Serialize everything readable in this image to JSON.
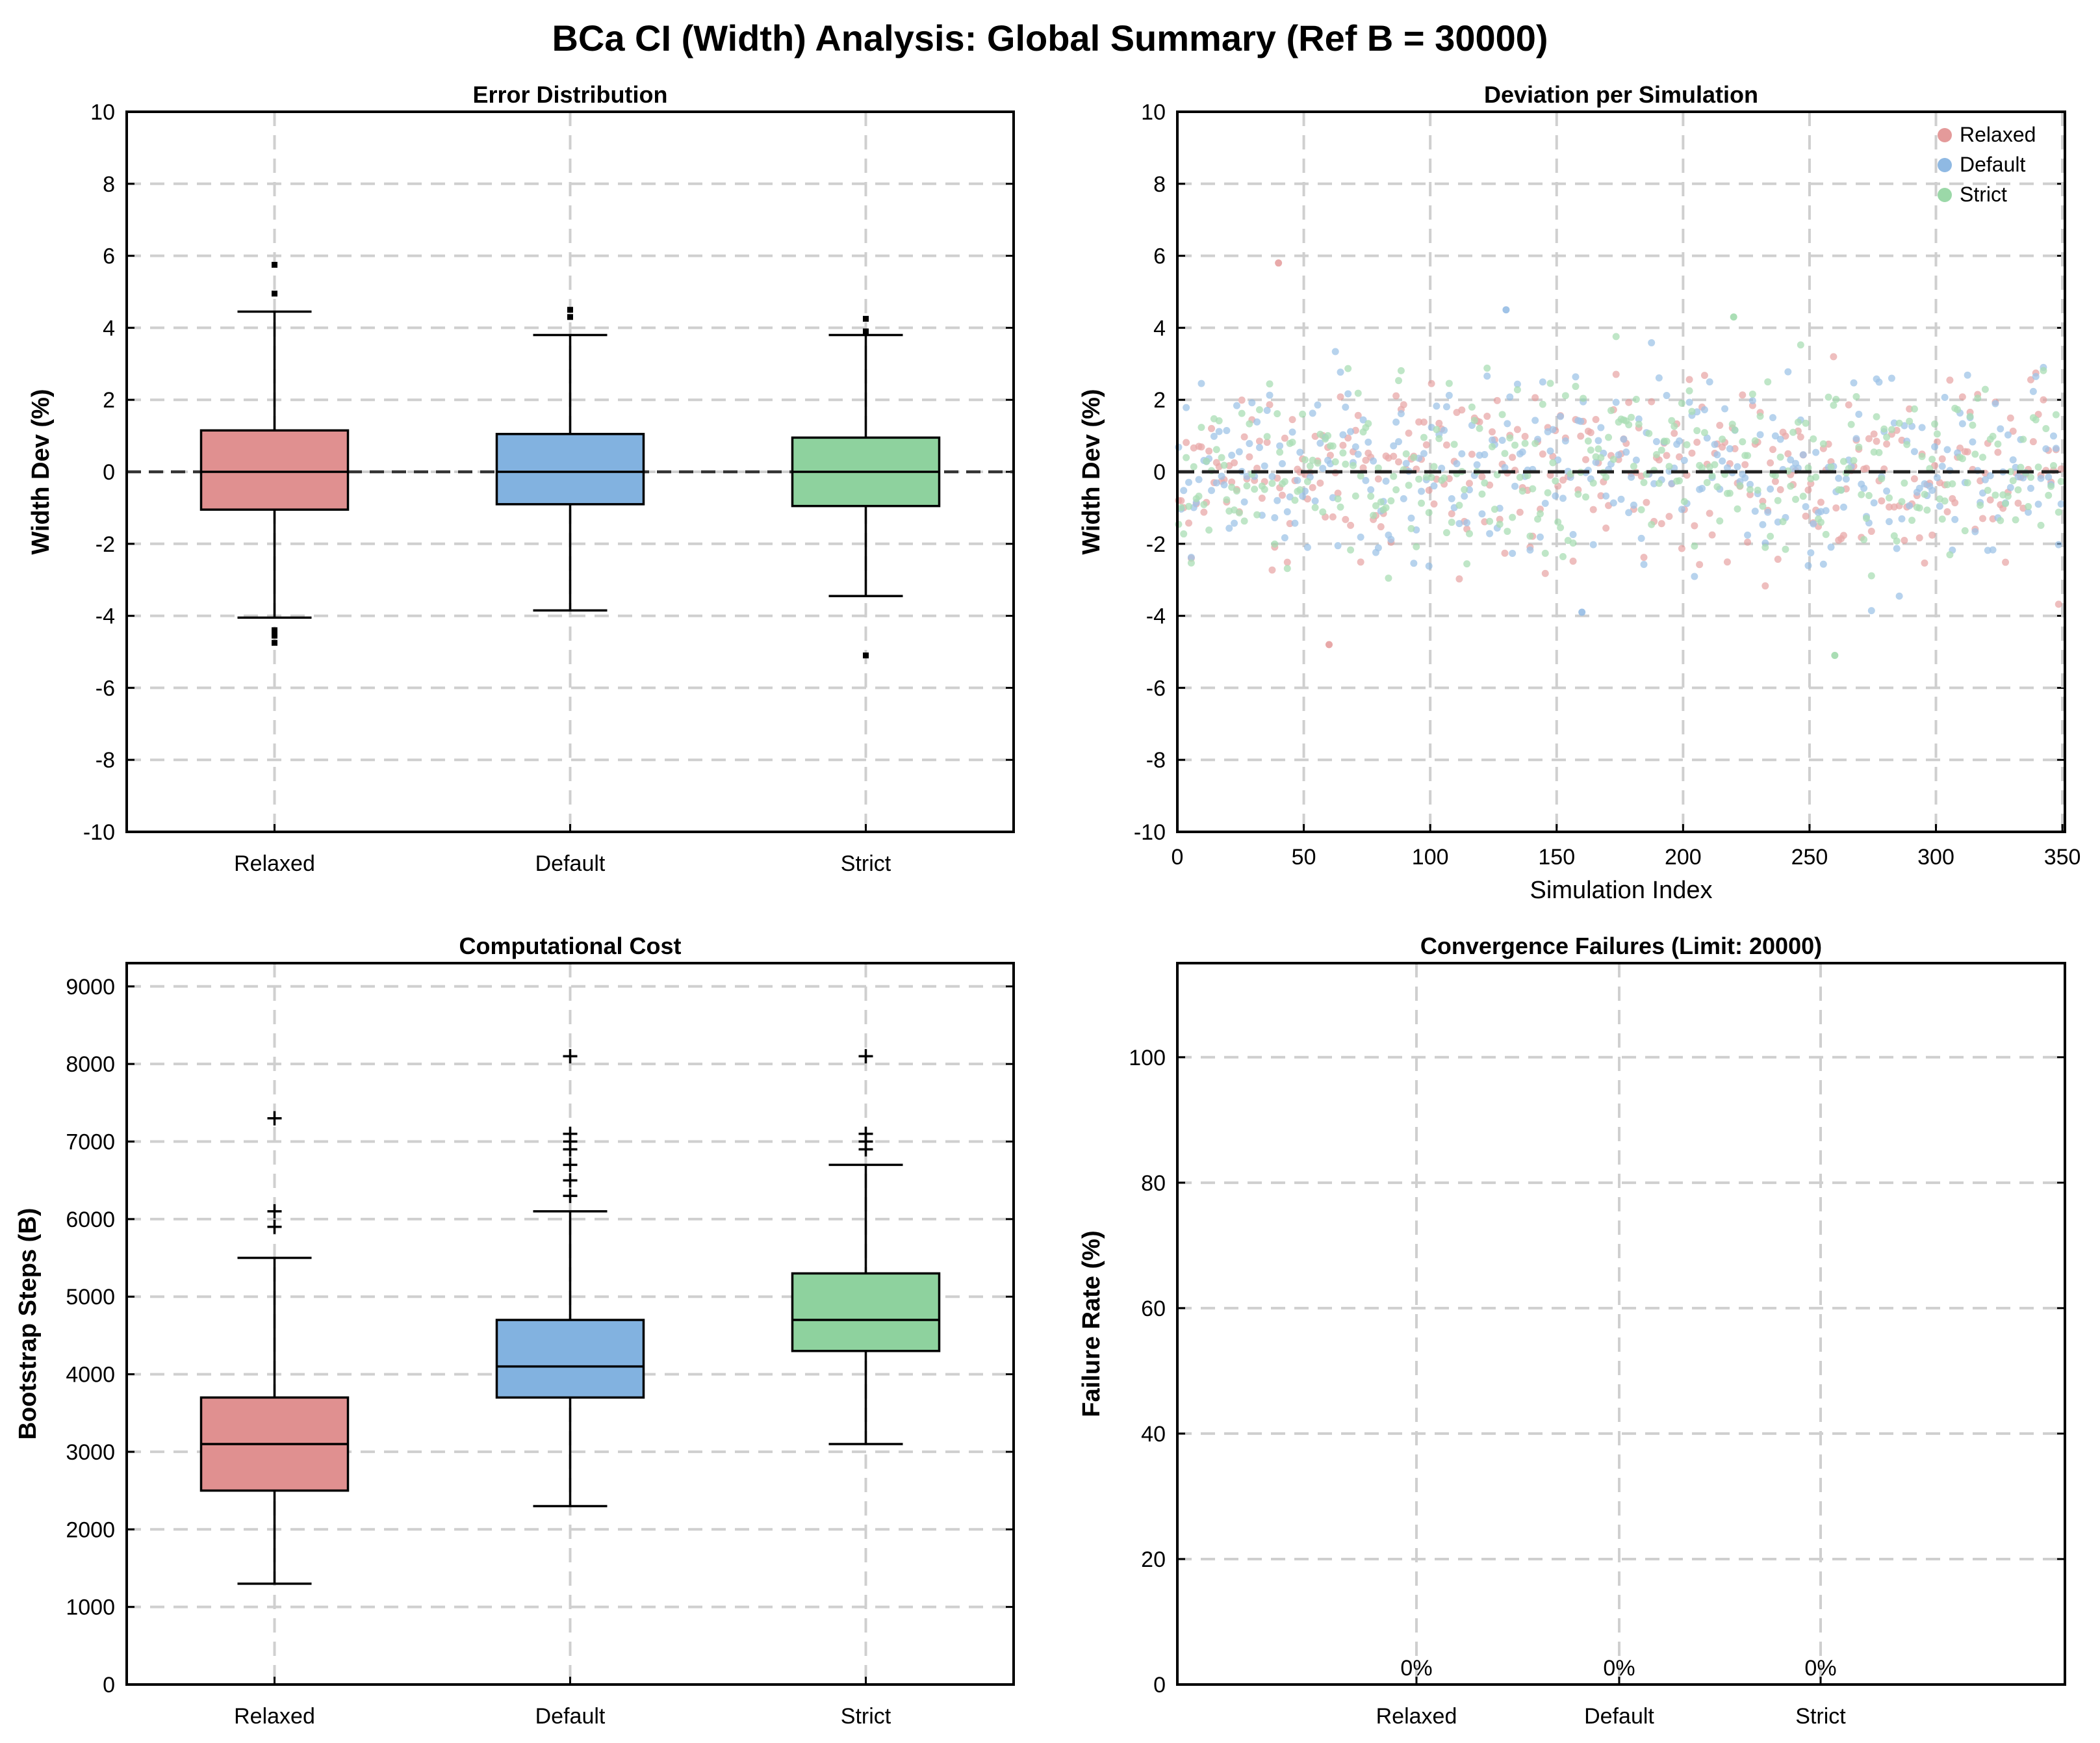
{
  "figure": {
    "title": "BCa CI (Width) Analysis: Global Summary (Ref B = 30000)"
  },
  "colors": {
    "Relaxed": "#e09090",
    "Default": "#82b2e0",
    "Strict": "#8ed29e",
    "scatter_Relaxed": "#e49a9a",
    "scatter_Default": "#8fb9e3",
    "scatter_Strict": "#9bd8a8"
  },
  "chart_data": [
    {
      "id": "error",
      "type": "box",
      "title": "Error Distribution",
      "xlabel": "",
      "ylabel": "Width Dev (%)",
      "categories": [
        "Relaxed",
        "Default",
        "Strict"
      ],
      "ylim": [
        -10,
        10
      ],
      "yticks": [
        -10,
        -8,
        -6,
        -4,
        -2,
        0,
        2,
        4,
        6,
        8,
        10
      ],
      "reference_line": 0,
      "boxes": [
        {
          "name": "Relaxed",
          "whislo": -4.05,
          "q1": -1.05,
          "med": 0.0,
          "q3": 1.15,
          "whishi": 4.45,
          "fliers": [
            -4.75,
            -4.55,
            -4.4,
            4.95,
            5.75
          ]
        },
        {
          "name": "Default",
          "whislo": -3.85,
          "q1": -0.9,
          "med": 0.0,
          "q3": 1.05,
          "whishi": 3.8,
          "fliers": [
            4.3,
            4.5
          ]
        },
        {
          "name": "Strict",
          "whislo": -3.45,
          "q1": -0.95,
          "med": 0.0,
          "q3": 0.95,
          "whishi": 3.8,
          "fliers": [
            -5.1,
            3.9,
            4.25
          ]
        }
      ]
    },
    {
      "id": "deviation",
      "type": "scatter",
      "title": "Deviation per Simulation",
      "xlabel": "Simulation Index",
      "ylabel": "Width Dev (%)",
      "xlim": [
        0,
        351
      ],
      "ylim": [
        -10,
        10
      ],
      "xticks": [
        0,
        50,
        100,
        150,
        200,
        250,
        300,
        350
      ],
      "yticks": [
        -10,
        -8,
        -6,
        -4,
        -2,
        0,
        2,
        4,
        6,
        8,
        10
      ],
      "reference_line": 0,
      "legend": {
        "position": "upper-right",
        "entries": [
          "Relaxed",
          "Default",
          "Strict"
        ]
      },
      "n_points_per_series": 350,
      "series": [
        {
          "name": "Relaxed",
          "y_min": -4.8,
          "y_max": 5.8
        },
        {
          "name": "Default",
          "y_min": -3.9,
          "y_max": 4.5
        },
        {
          "name": "Strict",
          "y_min": -5.1,
          "y_max": 4.3
        }
      ]
    },
    {
      "id": "cost",
      "type": "box",
      "title": "Computational Cost",
      "xlabel": "",
      "ylabel": "Bootstrap Steps (B)",
      "categories": [
        "Relaxed",
        "Default",
        "Strict"
      ],
      "ylim": [
        0,
        9300
      ],
      "yticks": [
        0,
        1000,
        2000,
        3000,
        4000,
        5000,
        6000,
        7000,
        8000,
        9000
      ],
      "boxes": [
        {
          "name": "Relaxed",
          "whislo": 1300,
          "q1": 2500,
          "med": 3100,
          "q3": 3700,
          "whishi": 5500,
          "fliers": [
            5900,
            6100,
            7300
          ]
        },
        {
          "name": "Default",
          "whislo": 2300,
          "q1": 3700,
          "med": 4100,
          "q3": 4700,
          "whishi": 6100,
          "fliers": [
            6300,
            6500,
            6700,
            6900,
            7000,
            7100,
            8100
          ]
        },
        {
          "name": "Strict",
          "whislo": 3100,
          "q1": 4300,
          "med": 4700,
          "q3": 5300,
          "whishi": 6700,
          "fliers": [
            6900,
            7000,
            7100,
            8100
          ]
        }
      ]
    },
    {
      "id": "failures",
      "type": "bar",
      "title": "Convergence Failures (Limit: 20000)",
      "xlabel": "",
      "ylabel": "Failure Rate (%)",
      "categories": [
        "Relaxed",
        "Default",
        "Strict"
      ],
      "values": [
        0,
        0,
        0
      ],
      "value_labels": [
        "0%",
        "0%",
        "0%"
      ],
      "ylim": [
        0,
        115
      ],
      "yticks": [
        0,
        20,
        40,
        60,
        80,
        100
      ]
    }
  ]
}
